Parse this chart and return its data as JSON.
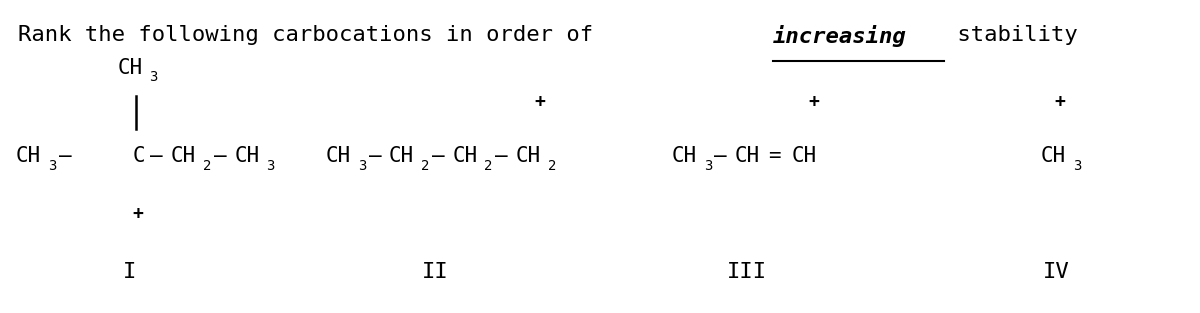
{
  "background_color": "#ffffff",
  "text_color": "#000000",
  "title_normal1": "Rank the following carbocations in order of ",
  "title_bold_italic": "increasing",
  "title_normal2": " stability",
  "title_fontsize": 16,
  "struct_fontsize": 15,
  "sub_fontsize": 10,
  "plus_fontsize": 13,
  "label_fontsize": 16
}
